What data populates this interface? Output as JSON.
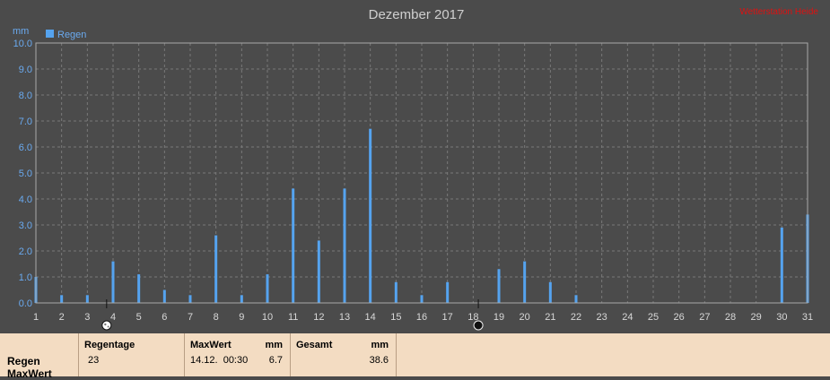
{
  "chart_data": {
    "type": "bar",
    "title": "Dezember 2017",
    "watermark": "Wetterstation Heide",
    "ylabel": "mm",
    "ylim": [
      0,
      10
    ],
    "yticks": [
      "0.0",
      "1.0",
      "2.0",
      "3.0",
      "4.0",
      "5.0",
      "6.0",
      "7.0",
      "8.0",
      "9.0",
      "10.0"
    ],
    "categories": [
      "1",
      "2",
      "3",
      "4",
      "5",
      "6",
      "7",
      "8",
      "9",
      "10",
      "11",
      "12",
      "13",
      "14",
      "15",
      "16",
      "17",
      "18",
      "19",
      "20",
      "21",
      "22",
      "23",
      "24",
      "25",
      "26",
      "27",
      "28",
      "29",
      "30",
      "31"
    ],
    "series": [
      {
        "name": "Regen",
        "color": "#55a3ef",
        "values": [
          1.0,
          0.3,
          0.3,
          1.6,
          1.1,
          0.5,
          0.3,
          2.6,
          0.3,
          1.1,
          4.4,
          2.4,
          4.4,
          6.7,
          0.8,
          0.3,
          0.8,
          0.0,
          1.3,
          1.6,
          0.8,
          0.3,
          0.0,
          0.0,
          0.0,
          0.0,
          0.0,
          0.0,
          0.0,
          2.9,
          3.4
        ]
      }
    ],
    "grid": true,
    "legend": "top-left",
    "moon_phases": [
      {
        "day": 3.75,
        "icon": "full-moon-icon"
      },
      {
        "day": 18.2,
        "icon": "new-moon-icon"
      }
    ]
  },
  "stats": {
    "row_labels": [
      "Regen",
      "MaxWert"
    ],
    "regentage": {
      "header": "Regentage",
      "value": "23"
    },
    "maxwert": {
      "header": "MaxWert",
      "unit": "mm",
      "datetime": "14.12.  00:30",
      "value": "6.7"
    },
    "gesamt": {
      "header": "Gesamt",
      "unit": "mm",
      "value": "38.6"
    }
  }
}
